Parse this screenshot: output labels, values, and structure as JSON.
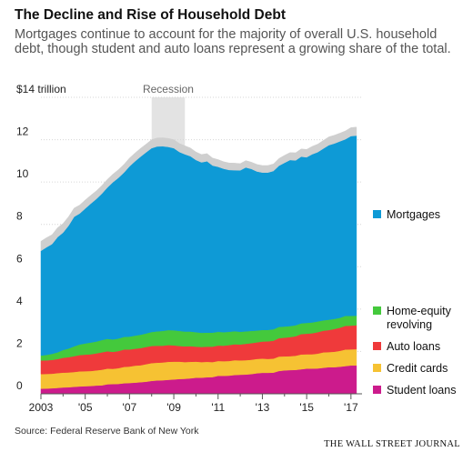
{
  "header": {
    "title": "The Decline and Rise of Household Debt",
    "subtitle": "Mortgages continue to account for the majority of overall U.S. household debt, though student and auto loans represent a growing share of the total."
  },
  "footer": {
    "source": "Source: Federal Reserve Bank of New York",
    "brand": "THE WALL STREET JOURNAL"
  },
  "chart_data": {
    "type": "area",
    "stacked": true,
    "title": "The Decline and Rise of Household Debt",
    "ylabel": "",
    "y_unit_label": "$14 trillion",
    "ylim": [
      0,
      14
    ],
    "yticks": [
      0,
      2,
      4,
      6,
      8,
      10,
      12,
      14
    ],
    "ytick_labels": [
      "0",
      "2",
      "4",
      "6",
      "8",
      "10",
      "12",
      "$14 trillion"
    ],
    "xlim": [
      2003.0,
      2017.5
    ],
    "xticks": [
      2003,
      2005,
      2007,
      2009,
      2011,
      2013,
      2015,
      2017
    ],
    "xtick_labels": [
      "2003",
      "'05",
      "'07",
      "'09",
      "'11",
      "'13",
      "'15",
      "'17"
    ],
    "annotation": {
      "label": "Recession",
      "x_start": 2008.0,
      "x_end": 2009.5
    },
    "legend_position": "right",
    "x": [
      2003.0,
      2003.25,
      2003.5,
      2003.75,
      2004.0,
      2004.25,
      2004.5,
      2004.75,
      2005.0,
      2005.25,
      2005.5,
      2005.75,
      2006.0,
      2006.25,
      2006.5,
      2006.75,
      2007.0,
      2007.25,
      2007.5,
      2007.75,
      2008.0,
      2008.25,
      2008.5,
      2008.75,
      2009.0,
      2009.25,
      2009.5,
      2009.75,
      2010.0,
      2010.25,
      2010.5,
      2010.75,
      2011.0,
      2011.25,
      2011.5,
      2011.75,
      2012.0,
      2012.25,
      2012.5,
      2012.75,
      2013.0,
      2013.25,
      2013.5,
      2013.75,
      2014.0,
      2014.25,
      2014.5,
      2014.75,
      2015.0,
      2015.25,
      2015.5,
      2015.75,
      2016.0,
      2016.25,
      2016.5,
      2016.75,
      2017.0,
      2017.25
    ],
    "series": [
      {
        "name": "Student loans",
        "color": "#cc1b8c",
        "values": [
          0.24,
          0.25,
          0.26,
          0.28,
          0.3,
          0.31,
          0.33,
          0.35,
          0.36,
          0.37,
          0.39,
          0.4,
          0.45,
          0.46,
          0.47,
          0.5,
          0.51,
          0.53,
          0.55,
          0.57,
          0.61,
          0.63,
          0.64,
          0.66,
          0.68,
          0.7,
          0.71,
          0.73,
          0.76,
          0.76,
          0.78,
          0.79,
          0.85,
          0.85,
          0.86,
          0.89,
          0.9,
          0.91,
          0.93,
          0.97,
          0.99,
          0.99,
          1.0,
          1.08,
          1.11,
          1.12,
          1.13,
          1.16,
          1.19,
          1.19,
          1.2,
          1.23,
          1.26,
          1.26,
          1.28,
          1.31,
          1.34,
          1.34
        ]
      },
      {
        "name": "Credit cards",
        "color": "#f6c233",
        "values": [
          0.69,
          0.69,
          0.69,
          0.7,
          0.7,
          0.7,
          0.7,
          0.71,
          0.71,
          0.71,
          0.72,
          0.74,
          0.74,
          0.72,
          0.74,
          0.77,
          0.78,
          0.8,
          0.8,
          0.83,
          0.84,
          0.84,
          0.84,
          0.85,
          0.84,
          0.82,
          0.79,
          0.78,
          0.76,
          0.74,
          0.73,
          0.71,
          0.7,
          0.69,
          0.69,
          0.7,
          0.68,
          0.68,
          0.68,
          0.68,
          0.67,
          0.66,
          0.66,
          0.68,
          0.66,
          0.66,
          0.67,
          0.7,
          0.68,
          0.68,
          0.7,
          0.73,
          0.71,
          0.73,
          0.75,
          0.78,
          0.76,
          0.77
        ]
      },
      {
        "name": "Auto loans",
        "color": "#ef3a3b",
        "values": [
          0.64,
          0.64,
          0.65,
          0.66,
          0.7,
          0.72,
          0.75,
          0.77,
          0.78,
          0.79,
          0.8,
          0.82,
          0.82,
          0.8,
          0.81,
          0.82,
          0.8,
          0.8,
          0.81,
          0.81,
          0.81,
          0.8,
          0.79,
          0.79,
          0.77,
          0.74,
          0.74,
          0.74,
          0.71,
          0.71,
          0.72,
          0.73,
          0.73,
          0.73,
          0.75,
          0.75,
          0.75,
          0.77,
          0.78,
          0.78,
          0.81,
          0.83,
          0.85,
          0.87,
          0.88,
          0.9,
          0.92,
          0.96,
          0.97,
          0.99,
          1.01,
          1.02,
          1.04,
          1.07,
          1.09,
          1.12,
          1.12,
          1.13
        ]
      },
      {
        "name": "Home-equity revolving",
        "color": "#44c93c",
        "values": [
          0.24,
          0.26,
          0.29,
          0.32,
          0.37,
          0.41,
          0.46,
          0.5,
          0.53,
          0.55,
          0.56,
          0.58,
          0.59,
          0.59,
          0.59,
          0.6,
          0.61,
          0.62,
          0.63,
          0.64,
          0.66,
          0.68,
          0.7,
          0.71,
          0.71,
          0.71,
          0.7,
          0.69,
          0.68,
          0.67,
          0.66,
          0.66,
          0.65,
          0.64,
          0.63,
          0.62,
          0.6,
          0.59,
          0.58,
          0.56,
          0.55,
          0.54,
          0.54,
          0.53,
          0.53,
          0.52,
          0.52,
          0.51,
          0.51,
          0.51,
          0.51,
          0.49,
          0.49,
          0.48,
          0.47,
          0.47,
          0.46,
          0.45
        ]
      },
      {
        "name": "Mortgages",
        "color": "#0e9ad6",
        "values": [
          4.94,
          5.08,
          5.18,
          5.44,
          5.54,
          5.8,
          6.12,
          6.18,
          6.37,
          6.56,
          6.73,
          6.91,
          7.14,
          7.42,
          7.59,
          7.76,
          8.04,
          8.23,
          8.41,
          8.55,
          8.68,
          8.73,
          8.72,
          8.65,
          8.6,
          8.45,
          8.37,
          8.28,
          8.13,
          8.05,
          8.09,
          7.89,
          7.79,
          7.72,
          7.64,
          7.6,
          7.62,
          7.74,
          7.65,
          7.51,
          7.43,
          7.43,
          7.47,
          7.61,
          7.73,
          7.84,
          7.78,
          7.87,
          7.82,
          7.94,
          7.99,
          8.11,
          8.24,
          8.28,
          8.33,
          8.34,
          8.49,
          8.5
        ]
      },
      {
        "name": "Other",
        "color": "#cfcfcf",
        "values": [
          0.45,
          0.45,
          0.44,
          0.44,
          0.43,
          0.42,
          0.41,
          0.4,
          0.4,
          0.39,
          0.38,
          0.38,
          0.38,
          0.38,
          0.38,
          0.38,
          0.39,
          0.39,
          0.39,
          0.39,
          0.4,
          0.4,
          0.4,
          0.4,
          0.4,
          0.4,
          0.4,
          0.39,
          0.38,
          0.37,
          0.36,
          0.35,
          0.34,
          0.33,
          0.33,
          0.33,
          0.32,
          0.32,
          0.32,
          0.33,
          0.33,
          0.33,
          0.33,
          0.34,
          0.35,
          0.35,
          0.36,
          0.36,
          0.37,
          0.37,
          0.38,
          0.38,
          0.39,
          0.39,
          0.39,
          0.39,
          0.4,
          0.4
        ]
      }
    ],
    "legend": [
      {
        "label": "Mortgages",
        "color": "#0e9ad6"
      },
      {
        "label": "Home-equity revolving",
        "color": "#44c93c"
      },
      {
        "label": "Auto loans",
        "color": "#ef3a3b"
      },
      {
        "label": "Credit cards",
        "color": "#f6c233"
      },
      {
        "label": "Student loans",
        "color": "#cc1b8c"
      }
    ]
  }
}
